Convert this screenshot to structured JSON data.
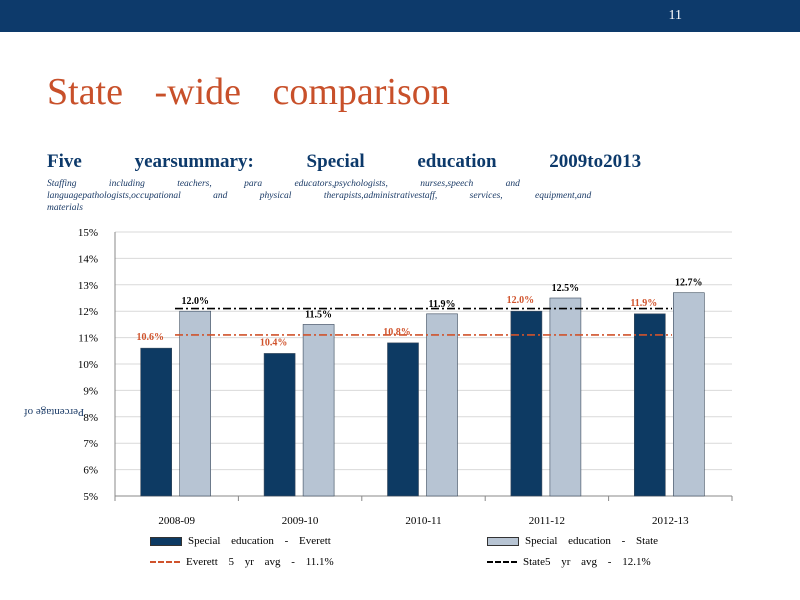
{
  "header": {
    "page_number": "11"
  },
  "title": "State  -wide  comparison",
  "subtitle": "Five  yearsummary:  Special  education  2009to2013",
  "description": "Staffing including teachers, para educators,psychologists, nurses,speech and languagepathologists,occupational and physical therapists,administrativestaff, services, equipment,and materials",
  "colors": {
    "everett": "#0d3a63",
    "state": "#b7c4d3",
    "everett_avg": "#d0532c",
    "state_avg": "#000000",
    "header": "#0d3a6b"
  },
  "chart_data": {
    "type": "bar",
    "categories": [
      "2008-09",
      "2009-10",
      "2010-11",
      "2011-12",
      "2012-13"
    ],
    "series": [
      {
        "name": "Special education - Everett",
        "values": [
          10.6,
          10.4,
          10.8,
          12.0,
          11.9
        ],
        "labels": [
          "10.6%",
          "10.4%",
          "10.8%",
          "12.0%",
          "11.9%"
        ]
      },
      {
        "name": "Special education - State",
        "values": [
          12.0,
          11.5,
          11.9,
          12.5,
          12.7
        ],
        "labels": [
          "12.0%",
          "11.5%",
          "11.9%",
          "12.5%",
          "12.7%"
        ]
      }
    ],
    "reference_lines": [
      {
        "name": "Everett  5 yr avg  - 11.1%",
        "value": 11.1,
        "style": "dash-dot"
      },
      {
        "name": "State5  yr avg  - 12.1%",
        "value": 12.1,
        "style": "dash-dot"
      }
    ],
    "ylim": [
      5,
      15
    ],
    "yticks": [
      "5%",
      "6%",
      "7%",
      "8%",
      "9%",
      "10%",
      "11%",
      "12%",
      "13%",
      "14%",
      "15%"
    ],
    "ylabel": "Percentage of",
    "grid": true,
    "legend": "bottom"
  }
}
